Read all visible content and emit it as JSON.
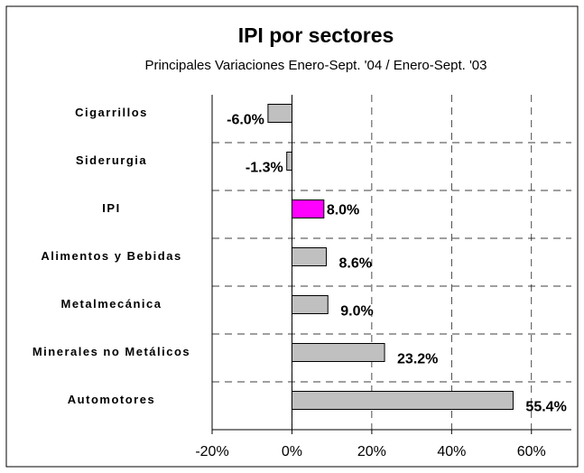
{
  "chart_data": {
    "type": "barh",
    "title": "IPI por sectores",
    "subtitle": "Principales Variaciones Enero-Sept. '04 / Enero-Sept. '03",
    "categories": [
      "Cigarrillos",
      "Siderurgia",
      "IPI",
      "Alimentos y Bebidas",
      "Metalmecánica",
      "Minerales no Metálicos",
      "Automotores"
    ],
    "values": [
      -6.0,
      -1.3,
      8.0,
      8.6,
      9.0,
      23.2,
      55.4
    ],
    "value_labels": [
      "-6.0%",
      "-1.3%",
      "8.0%",
      "8.6%",
      "9.0%",
      "23.2%",
      "55.4%"
    ],
    "colors": [
      "#c0c0c0",
      "#c0c0c0",
      "#ff00ff",
      "#c0c0c0",
      "#c0c0c0",
      "#c0c0c0",
      "#c0c0c0"
    ],
    "xlim": [
      -20,
      70
    ],
    "xticks": [
      {
        "value": -20,
        "label": "-20%"
      },
      {
        "value": 0,
        "label": "0%"
      },
      {
        "value": 20,
        "label": "20%"
      },
      {
        "value": 40,
        "label": "40%"
      },
      {
        "value": 60,
        "label": "60%"
      }
    ],
    "grid": true
  }
}
